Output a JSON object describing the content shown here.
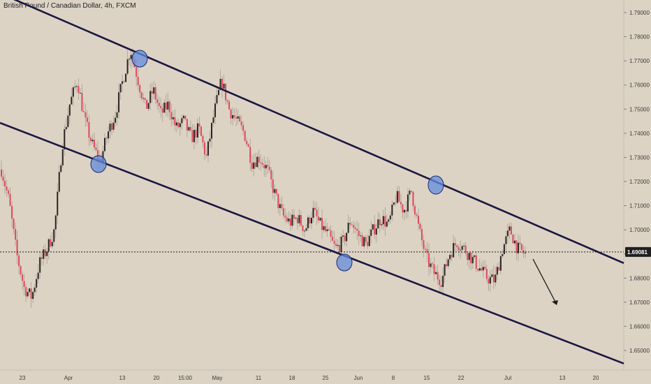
{
  "header": {
    "title": "British Pound / Canadian Dollar, 4h, FXCM"
  },
  "chart_data": {
    "type": "candlestick",
    "symbol": "British Pound / Canadian Dollar",
    "interval": "4h",
    "source": "FXCM",
    "ylim": [
      1.645,
      1.795
    ],
    "y_ticks": [
      "1.79000",
      "1.78000",
      "1.77000",
      "1.76000",
      "1.75000",
      "1.74000",
      "1.73000",
      "1.72000",
      "1.71000",
      "1.70000",
      "1.69000",
      "1.68000",
      "1.67000",
      "1.66000",
      "1.65000"
    ],
    "x_ticks": [
      "23",
      "Apr",
      "13",
      "20",
      "15:00",
      "May",
      "11",
      "18",
      "25",
      "Jun",
      "8",
      "15",
      "22",
      "Jul",
      "13",
      "20"
    ],
    "current_price": "1.69081",
    "close_path": [
      1.725,
      1.712,
      1.69,
      1.676,
      1.672,
      1.686,
      1.692,
      1.7,
      1.735,
      1.752,
      1.762,
      1.745,
      1.735,
      1.728,
      1.74,
      1.748,
      1.762,
      1.775,
      1.762,
      1.75,
      1.758,
      1.748,
      1.752,
      1.742,
      1.745,
      1.738,
      1.742,
      1.73,
      1.748,
      1.762,
      1.75,
      1.745,
      1.74,
      1.728,
      1.73,
      1.725,
      1.715,
      1.706,
      1.703,
      1.705,
      1.7,
      1.708,
      1.702,
      1.698,
      1.692,
      1.695,
      1.704,
      1.698,
      1.694,
      1.7,
      1.705,
      1.702,
      1.714,
      1.708,
      1.716,
      1.7,
      1.688,
      1.682,
      1.679,
      1.69,
      1.695,
      1.692,
      1.688,
      1.684,
      1.68,
      1.679,
      1.692,
      1.7,
      1.692,
      1.69
    ],
    "candle_count": 300,
    "channel_lines": [
      {
        "name": "upper-channel",
        "points": [
          [
            "start",
            1.798
          ],
          [
            "end",
            1.686
          ]
        ]
      },
      {
        "name": "lower-channel",
        "points": [
          [
            "start",
            1.744
          ],
          [
            "end",
            1.645
          ]
        ]
      }
    ],
    "touch_points": [
      "16 Apr",
      "8 Apr",
      "28 May",
      "16 Jun"
    ],
    "annotation": "downward arrow projecting lower prices"
  }
}
